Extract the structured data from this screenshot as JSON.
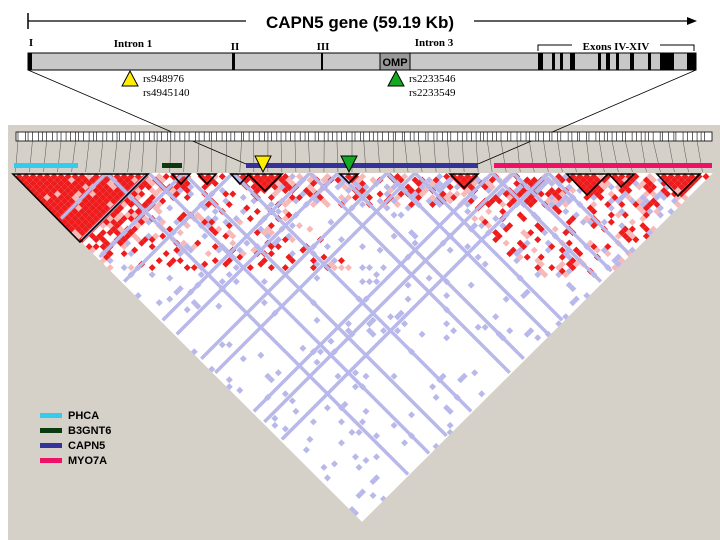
{
  "title": "CAPN5 gene (59.19 Kb)",
  "gene_labels": {
    "exon1": "I",
    "intron1": "Intron 1",
    "exon2": "II",
    "exon3": "III",
    "omp": "OMP",
    "intron3": "Intron 3",
    "exons_rest": "Exons IV-XIV"
  },
  "snps": {
    "yellow": [
      "rs948976",
      "rs4945140"
    ],
    "green": [
      "rs2233546",
      "rs2233549"
    ]
  },
  "colors": {
    "PHCA": "#33ccee",
    "B3GNT6": "#0b3a10",
    "CAPN5": "#333399",
    "MYO7A": "#ee1166",
    "ld_strong": "#ee1c1c",
    "ld_weak": "#b8b8ea",
    "gene_bar": "#c8c8c8",
    "panel_bg": "#d5d0c8",
    "snp_yellow": "#ffee00",
    "snp_green": "#11aa22"
  },
  "legend": [
    {
      "label": "PHCA",
      "color_key": "PHCA"
    },
    {
      "label": "B3GNT6",
      "color_key": "B3GNT6"
    },
    {
      "label": "CAPN5",
      "color_key": "CAPN5"
    },
    {
      "label": "MYO7A",
      "color_key": "MYO7A"
    }
  ]
}
